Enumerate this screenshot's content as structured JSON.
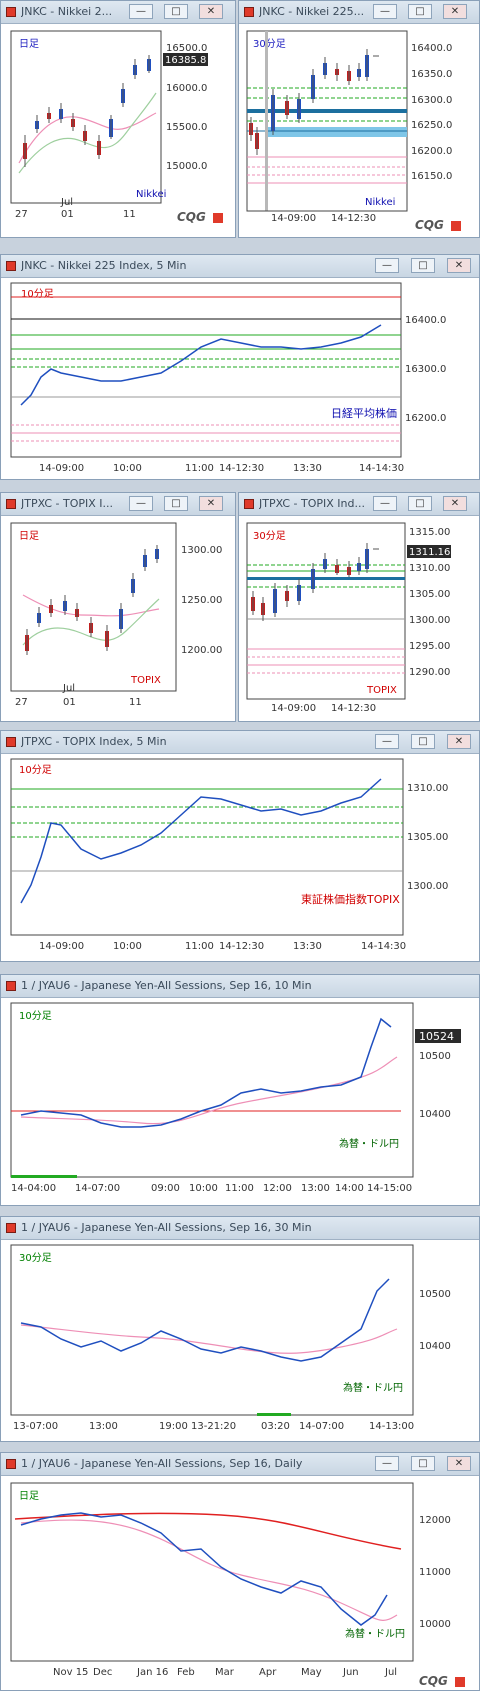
{
  "windows": [
    {
      "title": "JNKC - Nikkei 2...",
      "period": "日足",
      "symbol": "Nikkei",
      "price_tag": "16385.8",
      "ylabels": [
        "16500.0",
        "16000.0",
        "15500.0",
        "15000.0"
      ],
      "xlabels": [
        "27",
        "01",
        "Jul",
        "11"
      ]
    },
    {
      "title": "JNKC - Nikkei 225...",
      "period": "30分足",
      "symbol": "Nikkei",
      "ylabels": [
        "16400.0",
        "16350.0",
        "16300.0",
        "16250.0",
        "16200.0",
        "16150.0"
      ],
      "xlabels": [
        "14-09:00",
        "14-12:30"
      ]
    },
    {
      "title": "JNKC - Nikkei 225 Index, 5 Min",
      "period": "10分足",
      "symbol": "日経平均株価",
      "ylabels": [
        "16400.0",
        "16300.0",
        "16200.0"
      ],
      "xlabels": [
        "14-09:00",
        "10:00",
        "11:00",
        "14-12:30",
        "13:30",
        "14-14:30"
      ]
    },
    {
      "title": "JTPXC - TOPIX I...",
      "period": "日足",
      "symbol": "TOPIX",
      "ylabels": [
        "1300.00",
        "1250.00",
        "1200.00"
      ],
      "xlabels": [
        "27",
        "01",
        "Jul",
        "11"
      ]
    },
    {
      "title": "JTPXC - TOPIX Ind...",
      "period": "30分足",
      "symbol": "TOPIX",
      "price_tag": "1311.16",
      "ylabels": [
        "1315.00",
        "1310.00",
        "1305.00",
        "1300.00",
        "1295.00",
        "1290.00"
      ],
      "xlabels": [
        "14-09:00",
        "14-12:30"
      ]
    },
    {
      "title": "JTPXC - TOPIX Index, 5 Min",
      "period": "10分足",
      "symbol": "東証株価指数TOPIX",
      "ylabels": [
        "1310.00",
        "1305.00",
        "1300.00"
      ],
      "xlabels": [
        "14-09:00",
        "10:00",
        "11:00",
        "14-12:30",
        "13:30",
        "14-14:30"
      ]
    },
    {
      "title": "1 / JYAU6 - Japanese Yen-All Sessions, Sep 16, 10 Min",
      "period": "10分足",
      "symbol": "為替・ドル円",
      "price_tag": "10524",
      "ylabels": [
        "10500",
        "10400"
      ],
      "xlabels": [
        "14-04:00",
        "14-07:00",
        "09:00",
        "10:00",
        "11:00",
        "12:00",
        "13:00",
        "14:00",
        "14-15:00"
      ]
    },
    {
      "title": "1 / JYAU6 - Japanese Yen-All Sessions, Sep 16, 30 Min",
      "period": "30分足",
      "symbol": "為替・ドル円",
      "ylabels": [
        "10500",
        "10400"
      ],
      "xlabels": [
        "13-07:00",
        "13:00",
        "19:00",
        "13-21:20",
        "03:20",
        "14-07:00",
        "14-13:00"
      ]
    },
    {
      "title": "1 / JYAU6 - Japanese Yen-All Sessions, Sep 16, Daily",
      "period": "日足",
      "symbol": "為替・ドル円",
      "ylabels": [
        "12000",
        "11000",
        "10000"
      ],
      "xlabels": [
        "Nov 15",
        "Dec",
        "Jan 16",
        "Feb",
        "Mar",
        "Apr",
        "May",
        "Jun",
        "Jul"
      ]
    }
  ],
  "brand": "CQG",
  "buttons": {
    "minimize": "—",
    "restore": "□",
    "close": "✕"
  },
  "colors": {
    "up": "#1f4fbf",
    "down": "#c02020",
    "sma_short": "#9ecf9e",
    "sma_long": "#ee8fb6",
    "line_red": "#e02020",
    "green_band": "#22aa22",
    "teal": "#1c6f9f",
    "period_red": "#d00000",
    "period_blue": "#2020c0",
    "period_green": "#008000",
    "symbol_blue": "#1010b0",
    "symbol_red": "#d00000",
    "symbol_green": "#006400"
  }
}
